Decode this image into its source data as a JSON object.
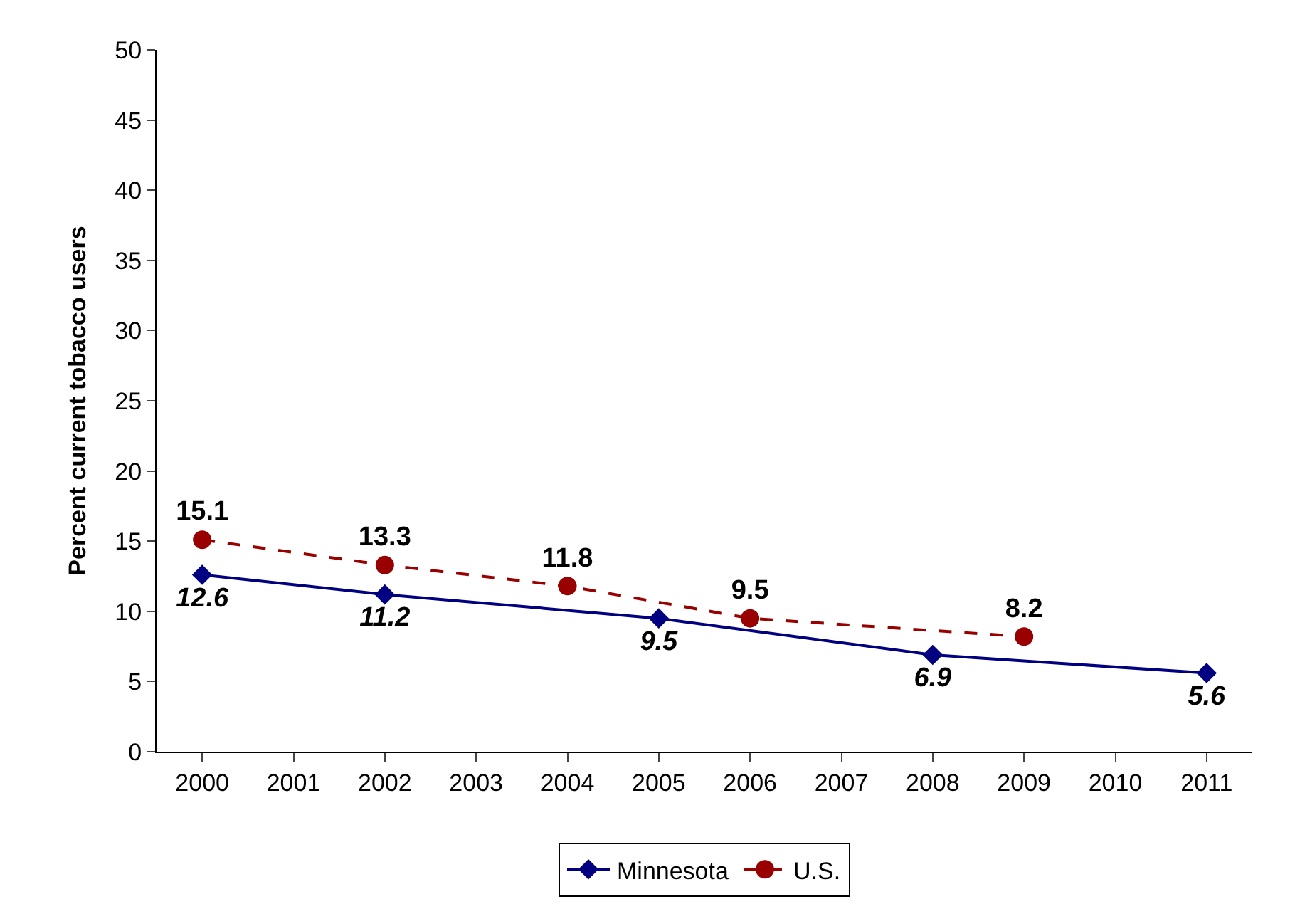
{
  "chart_data": {
    "type": "line",
    "ylabel": "Percent current tobacco users",
    "xlim": [
      1999.5,
      2011.5
    ],
    "xticks": [
      2000,
      2001,
      2002,
      2003,
      2004,
      2005,
      2006,
      2007,
      2008,
      2009,
      2010,
      2011
    ],
    "ylim": [
      0,
      50
    ],
    "yticks": [
      0,
      5,
      10,
      15,
      20,
      25,
      30,
      35,
      40,
      45,
      50
    ],
    "legend": "bottom",
    "data_labels": true,
    "series": [
      {
        "name": "Minnesota",
        "color": "#000080",
        "marker": "diamond",
        "line_style": "solid",
        "x": [
          2000,
          2002,
          2005,
          2008,
          2011
        ],
        "values": [
          12.6,
          11.2,
          9.5,
          6.9,
          5.6
        ]
      },
      {
        "name": "U.S.",
        "color": "#990000",
        "marker": "circle",
        "line_style": "dashed",
        "x": [
          2000,
          2002,
          2004,
          2006,
          2009
        ],
        "values": [
          15.1,
          13.3,
          11.8,
          9.5,
          8.2
        ]
      }
    ]
  }
}
